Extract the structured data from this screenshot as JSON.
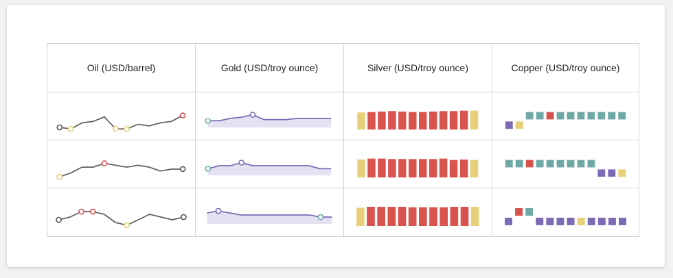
{
  "colors": {
    "line": "#616161",
    "purple": "#7b6bb5",
    "area": "#e4e1f2",
    "red": "#d9534f",
    "yellow": "#e8cf7a",
    "teal": "#6fa8a5",
    "dot_dark": "#555555"
  },
  "headers": [
    "Oil (USD/barrel)",
    "Gold (USD/troy ounce)",
    "Silver (USD/troy ounce)",
    "Copper (USD/troy ounce)"
  ],
  "chart_data": {
    "type": "table",
    "oil": {
      "sparktype": "line",
      "rows": [
        [
          12,
          11,
          15,
          16,
          19,
          11,
          11,
          14,
          13,
          15,
          16,
          20
        ],
        [
          12,
          14,
          17,
          17,
          19,
          18,
          17,
          18,
          17,
          15,
          16,
          16
        ],
        [
          14,
          15,
          17,
          17,
          16,
          13,
          12,
          14,
          16,
          15,
          14,
          15
        ]
      ]
    },
    "gold": {
      "sparktype": "area",
      "rows": [
        [
          14,
          14,
          16,
          17,
          19,
          15,
          15,
          15,
          16,
          16,
          16,
          16
        ],
        [
          15,
          16,
          16,
          17,
          16,
          16,
          16,
          16,
          16,
          16,
          15,
          15
        ],
        [
          17,
          18,
          17,
          16,
          16,
          16,
          16,
          16,
          16,
          16,
          15,
          15
        ]
      ]
    },
    "silver": {
      "sparktype": "bar",
      "rows": [
        [
          11,
          12,
          13,
          14,
          13,
          12,
          12,
          13,
          14,
          14,
          15,
          15
        ],
        [
          13,
          15,
          15,
          14,
          14,
          14,
          14,
          14,
          15,
          12,
          13,
          12
        ],
        [
          12,
          14,
          14,
          14,
          14,
          13,
          13,
          13,
          13,
          14,
          14,
          14
        ]
      ]
    },
    "copper": {
      "sparktype": "winloss",
      "rows": [
        [
          -1,
          -1,
          1,
          1,
          1,
          1,
          1,
          1,
          1,
          1,
          1,
          1
        ],
        [
          1,
          1,
          1,
          1,
          1,
          1,
          1,
          1,
          1,
          -1,
          -1,
          -1
        ],
        [
          -1,
          1,
          1,
          -1,
          -1,
          -1,
          -1,
          -1,
          -1,
          -1,
          -1,
          -1
        ]
      ]
    }
  }
}
